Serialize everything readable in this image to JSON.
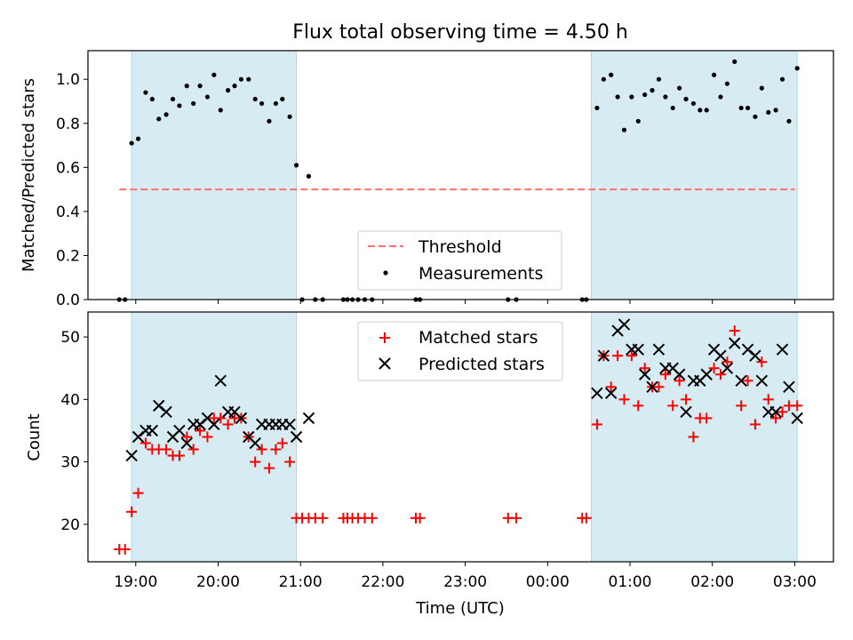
{
  "title": "Flux total observing time = 4.50 h",
  "chart_data": [
    {
      "type": "scatter",
      "panel": "top",
      "ylabel": "Matched/Predicted stars",
      "ylim": [
        0,
        1.13
      ],
      "yticks": [
        0.0,
        0.2,
        0.4,
        0.6,
        0.8,
        1.0
      ],
      "ytick_labels": [
        "0.0",
        "0.2",
        "0.4",
        "0.6",
        "0.8",
        "1.0"
      ],
      "xlim": [
        18.42,
        27.47
      ],
      "x_tick_labels": [],
      "shaded_spans": [
        [
          18.95,
          20.95
        ],
        [
          24.53,
          27.03
        ]
      ],
      "shade_color": "#add8e6",
      "threshold": {
        "name": "Threshold",
        "y": 0.5,
        "x": [
          18.8,
          27.0
        ],
        "color": "#ff7070"
      },
      "series": [
        {
          "name": "Measurements",
          "color": "#000000",
          "x": [
            18.8,
            18.87,
            18.95,
            19.03,
            19.12,
            19.2,
            19.28,
            19.37,
            19.45,
            19.53,
            19.62,
            19.7,
            19.78,
            19.87,
            19.95,
            20.03,
            20.12,
            20.2,
            20.28,
            20.37,
            20.45,
            20.53,
            20.62,
            20.7,
            20.78,
            20.87,
            20.95,
            21.02,
            21.1,
            21.18,
            21.27,
            21.52,
            21.57,
            21.63,
            21.7,
            21.78,
            21.87,
            22.4,
            22.45,
            23.52,
            23.62,
            24.42,
            24.47,
            24.6,
            24.68,
            24.77,
            24.85,
            24.93,
            25.02,
            25.1,
            25.18,
            25.27,
            25.35,
            25.43,
            25.52,
            25.6,
            25.68,
            25.77,
            25.85,
            25.93,
            26.02,
            26.1,
            26.18,
            26.27,
            26.35,
            26.43,
            26.52,
            26.6,
            26.68,
            26.77,
            26.85,
            26.93,
            27.03
          ],
          "y": [
            0.0,
            0.0,
            0.71,
            0.73,
            0.94,
            0.91,
            0.82,
            0.84,
            0.91,
            0.88,
            0.97,
            0.89,
            0.97,
            0.92,
            1.02,
            0.86,
            0.95,
            0.97,
            1.0,
            1.0,
            0.91,
            0.89,
            0.81,
            0.89,
            0.91,
            0.83,
            0.61,
            0.0,
            0.56,
            0.0,
            0.0,
            0.0,
            0.0,
            0.0,
            0.0,
            0.0,
            0.0,
            0.0,
            0.0,
            0.0,
            0.0,
            0.0,
            0.0,
            0.87,
            1.0,
            1.02,
            0.92,
            0.77,
            0.92,
            0.81,
            0.93,
            0.95,
            1.0,
            0.92,
            0.87,
            0.96,
            0.91,
            0.89,
            0.86,
            0.86,
            1.02,
            0.92,
            0.98,
            1.08,
            0.87,
            0.87,
            0.83,
            0.96,
            0.85,
            0.86,
            1.0,
            0.81,
            1.05
          ]
        }
      ]
    },
    {
      "type": "scatter",
      "panel": "bottom",
      "xlabel": "Time (UTC)",
      "ylabel": "Count",
      "ylim": [
        14,
        54
      ],
      "yticks": [
        20,
        30,
        40,
        50
      ],
      "ytick_labels": [
        "20",
        "30",
        "40",
        "50"
      ],
      "xlim": [
        18.42,
        27.47
      ],
      "xticks": [
        19,
        20,
        21,
        22,
        23,
        24,
        25,
        26,
        27
      ],
      "x_tick_labels": [
        "19:00",
        "20:00",
        "21:00",
        "22:00",
        "23:00",
        "00:00",
        "01:00",
        "02:00",
        "03:00"
      ],
      "shaded_spans": [
        [
          18.95,
          20.95
        ],
        [
          24.53,
          27.03
        ]
      ],
      "shade_color": "#add8e6",
      "series": [
        {
          "name": "Matched stars",
          "marker": "plus",
          "color": "#ff0000",
          "x": [
            18.8,
            18.87,
            18.95,
            19.03,
            19.12,
            19.2,
            19.28,
            19.37,
            19.45,
            19.53,
            19.62,
            19.7,
            19.78,
            19.87,
            19.95,
            20.03,
            20.12,
            20.2,
            20.28,
            20.37,
            20.45,
            20.53,
            20.62,
            20.7,
            20.78,
            20.87,
            20.95,
            21.02,
            21.1,
            21.18,
            21.27,
            21.52,
            21.57,
            21.63,
            21.7,
            21.78,
            21.87,
            22.4,
            22.45,
            23.52,
            23.62,
            24.42,
            24.47,
            24.6,
            24.68,
            24.77,
            24.85,
            24.93,
            25.02,
            25.1,
            25.18,
            25.27,
            25.35,
            25.43,
            25.52,
            25.6,
            25.68,
            25.77,
            25.85,
            25.93,
            26.02,
            26.1,
            26.18,
            26.27,
            26.35,
            26.43,
            26.52,
            26.6,
            26.68,
            26.77,
            26.85,
            26.93,
            27.03
          ],
          "y": [
            16,
            16,
            22,
            25,
            33,
            32,
            32,
            32,
            31,
            31,
            34,
            32,
            35,
            34,
            37,
            37,
            36,
            37,
            37,
            34,
            30,
            32,
            29,
            32,
            33,
            30,
            21,
            21,
            21,
            21,
            21,
            21,
            21,
            21,
            21,
            21,
            21,
            21,
            21,
            21,
            21,
            21,
            21,
            36,
            47,
            42,
            47,
            40,
            47,
            39,
            45,
            42,
            42,
            44,
            39,
            43,
            40,
            34,
            37,
            37,
            45,
            44,
            46,
            51,
            39,
            43,
            36,
            46,
            40,
            37,
            38,
            39,
            39
          ]
        },
        {
          "name": "Predicted stars",
          "marker": "x",
          "color": "#000000",
          "x": [
            18.95,
            19.03,
            19.12,
            19.2,
            19.28,
            19.37,
            19.45,
            19.53,
            19.62,
            19.7,
            19.78,
            19.87,
            19.95,
            20.03,
            20.12,
            20.2,
            20.28,
            20.37,
            20.45,
            20.53,
            20.62,
            20.7,
            20.78,
            20.87,
            20.95,
            21.1,
            24.6,
            24.68,
            24.77,
            24.85,
            24.93,
            25.02,
            25.1,
            25.18,
            25.27,
            25.35,
            25.43,
            25.52,
            25.6,
            25.68,
            25.77,
            25.85,
            25.93,
            26.02,
            26.1,
            26.18,
            26.27,
            26.35,
            26.43,
            26.52,
            26.6,
            26.68,
            26.77,
            26.85,
            26.93,
            27.03
          ],
          "y": [
            31,
            34,
            35,
            35,
            39,
            38,
            34,
            35,
            33,
            36,
            36,
            37,
            36,
            43,
            38,
            38,
            37,
            34,
            33,
            36,
            36,
            36,
            36,
            36,
            34,
            37,
            41,
            47,
            41,
            51,
            52,
            48,
            48,
            44,
            42,
            48,
            45,
            45,
            44,
            38,
            43,
            43,
            44,
            48,
            47,
            45,
            49,
            43,
            48,
            47,
            43,
            38,
            38,
            48,
            42,
            37
          ]
        }
      ]
    }
  ],
  "legends": {
    "top": [
      {
        "label": "Threshold",
        "marker": "dash",
        "color": "#ff7070"
      },
      {
        "label": "Measurements",
        "marker": "dot",
        "color": "#000000"
      }
    ],
    "bottom": [
      {
        "label": "Matched stars",
        "marker": "plus",
        "color": "#ff0000"
      },
      {
        "label": "Predicted stars",
        "marker": "x",
        "color": "#000000"
      }
    ]
  }
}
